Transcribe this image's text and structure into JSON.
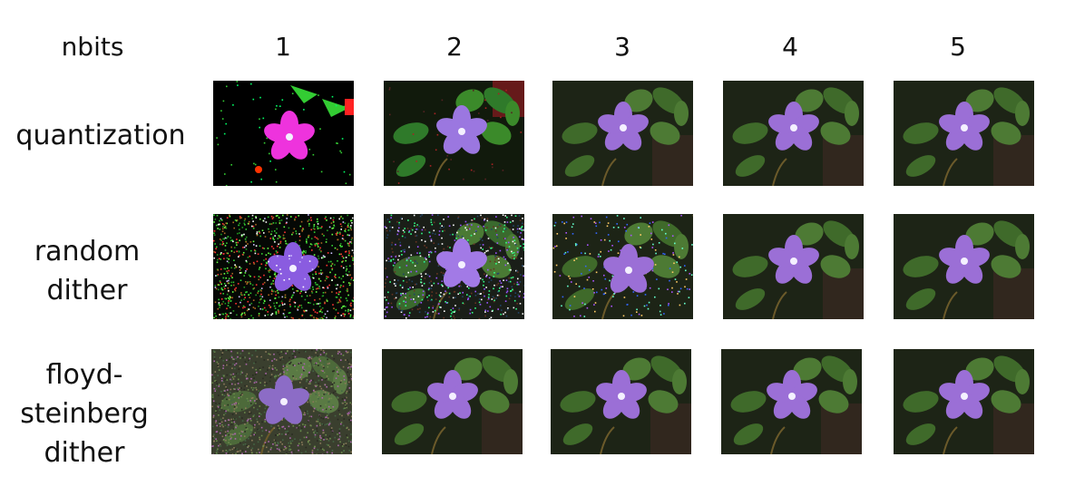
{
  "header": {
    "corner": "nbits",
    "columns": [
      "1",
      "2",
      "3",
      "4",
      "5"
    ]
  },
  "rows": [
    {
      "id": "quantization",
      "label_lines": [
        "quantization"
      ]
    },
    {
      "id": "random-dither",
      "label_lines": [
        "random",
        "dither"
      ]
    },
    {
      "id": "floyd-steinberg",
      "label_lines": [
        "floyd-",
        "steinberg",
        "dither"
      ]
    }
  ],
  "colors": {
    "background": "#ffffff",
    "petal": "#9b6fd6",
    "leaf": "#3f6a2a",
    "shadow": "#1a2114"
  }
}
